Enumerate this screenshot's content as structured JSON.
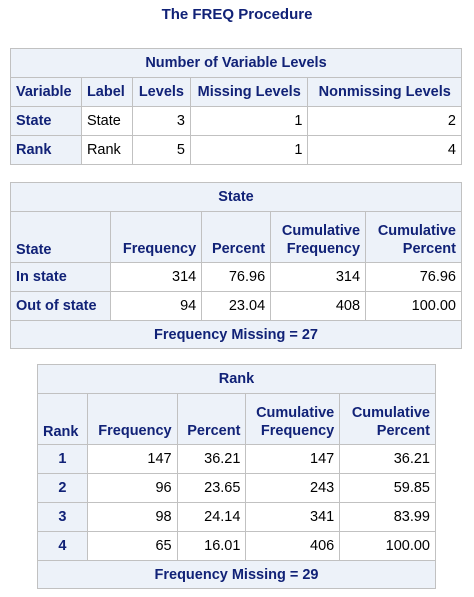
{
  "title": "The FREQ Procedure",
  "levels": {
    "caption": "Number of Variable Levels",
    "headers": [
      "Variable",
      "Label",
      "Levels",
      "Missing Levels",
      "Nonmissing Levels"
    ],
    "rows": [
      [
        "State",
        "State",
        "3",
        "1",
        "2"
      ],
      [
        "Rank",
        "Rank",
        "5",
        "1",
        "4"
      ]
    ]
  },
  "state": {
    "caption": "State",
    "headers": [
      "State",
      "Frequency",
      "Percent",
      "Cumulative Frequency",
      "Cumulative Percent"
    ],
    "rows": [
      [
        "In state",
        "314",
        "76.96",
        "314",
        "76.96"
      ],
      [
        "Out of state",
        "94",
        "23.04",
        "408",
        "100.00"
      ]
    ],
    "missing": "Frequency Missing = 27"
  },
  "rank": {
    "caption": "Rank",
    "headers": [
      "Rank",
      "Frequency",
      "Percent",
      "Cumulative Frequency",
      "Cumulative Percent"
    ],
    "rows": [
      [
        "1",
        "147",
        "36.21",
        "147",
        "36.21"
      ],
      [
        "2",
        "96",
        "23.65",
        "243",
        "59.85"
      ],
      [
        "3",
        "98",
        "24.14",
        "341",
        "83.99"
      ],
      [
        "4",
        "65",
        "16.01",
        "406",
        "100.00"
      ]
    ],
    "missing": "Frequency Missing = 29"
  },
  "colors": {
    "header_bg": "#edf2f9",
    "header_text": "#112277",
    "border": "#c1c1c1"
  }
}
